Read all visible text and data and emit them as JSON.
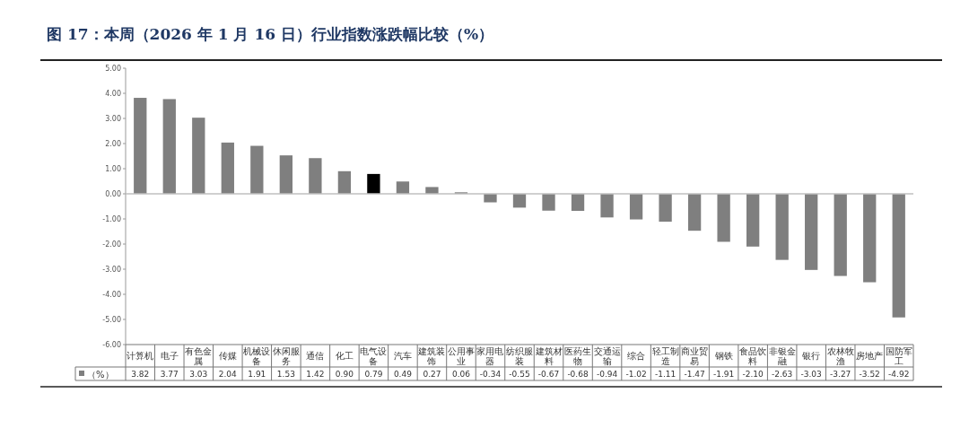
{
  "chart_data": {
    "type": "bar",
    "title": "图 17：本周（2026 年 1 月 16 日）行业指数涨跌幅比较（%）",
    "categories": [
      "计算机",
      "电子",
      "有色金属",
      "传媒",
      "机械设备",
      "休闲服务",
      "通信",
      "化工",
      "电气设备",
      "汽车",
      "建筑装饰",
      "公用事业",
      "家用电器",
      "纺织服装",
      "建筑材料",
      "医药生物",
      "交通运输",
      "综合",
      "轻工制造",
      "商业贸易",
      "钢铁",
      "食品饮料",
      "非银金融",
      "银行",
      "农林牧渔",
      "房地产",
      "国防军工"
    ],
    "series": [
      {
        "name": "（%）",
        "color": "#7f7f7f",
        "colors": [
          "#7f7f7f",
          "#7f7f7f",
          "#7f7f7f",
          "#7f7f7f",
          "#7f7f7f",
          "#7f7f7f",
          "#7f7f7f",
          "#7f7f7f",
          "#000000",
          "#7f7f7f",
          "#7f7f7f",
          "#7f7f7f",
          "#7f7f7f",
          "#7f7f7f",
          "#7f7f7f",
          "#7f7f7f",
          "#7f7f7f",
          "#7f7f7f",
          "#7f7f7f",
          "#7f7f7f",
          "#7f7f7f",
          "#7f7f7f",
          "#7f7f7f",
          "#7f7f7f",
          "#7f7f7f",
          "#7f7f7f",
          "#7f7f7f"
        ],
        "values": [
          3.82,
          3.77,
          3.03,
          2.04,
          1.91,
          1.53,
          1.42,
          0.9,
          0.79,
          0.49,
          0.27,
          0.06,
          -0.34,
          -0.55,
          -0.67,
          -0.68,
          -0.94,
          -1.02,
          -1.11,
          -1.47,
          -1.91,
          -2.1,
          -2.63,
          -3.03,
          -3.27,
          -3.52,
          -4.92
        ],
        "value_labels": [
          "3.82",
          "3.77",
          "3.03",
          "2.04",
          "1.91",
          "1.53",
          "1.42",
          "0.90",
          "0.79",
          "0.49",
          "0.27",
          "0.06",
          "-0.34",
          "-0.55",
          "-0.67",
          "-0.68",
          "-0.94",
          "-1.02",
          "-1.11",
          "-1.47",
          "-1.91",
          "-2.10",
          "-2.63",
          "-3.03",
          "-3.27",
          "-3.52",
          "-4.92"
        ]
      }
    ],
    "ylim": [
      -6,
      5
    ],
    "yticks": [
      {
        "value": 5,
        "label": "5.00"
      },
      {
        "value": 4,
        "label": "4.00"
      },
      {
        "value": 3,
        "label": "3.00"
      },
      {
        "value": 2,
        "label": "2.00"
      },
      {
        "value": 1,
        "label": "1.00"
      },
      {
        "value": 0,
        "label": "0.00"
      },
      {
        "value": -1,
        "label": "-1.00"
      },
      {
        "value": -2,
        "label": "-2.00"
      },
      {
        "value": -3,
        "label": "-3.00"
      },
      {
        "value": -4,
        "label": "-4.00"
      },
      {
        "value": -5,
        "label": "-5.00"
      },
      {
        "value": -6,
        "label": "-6.00"
      }
    ],
    "ref_lines": [
      {
        "axis": "y",
        "value": 0,
        "color": "#bfbfbf"
      }
    ],
    "legend": "bottom left"
  }
}
